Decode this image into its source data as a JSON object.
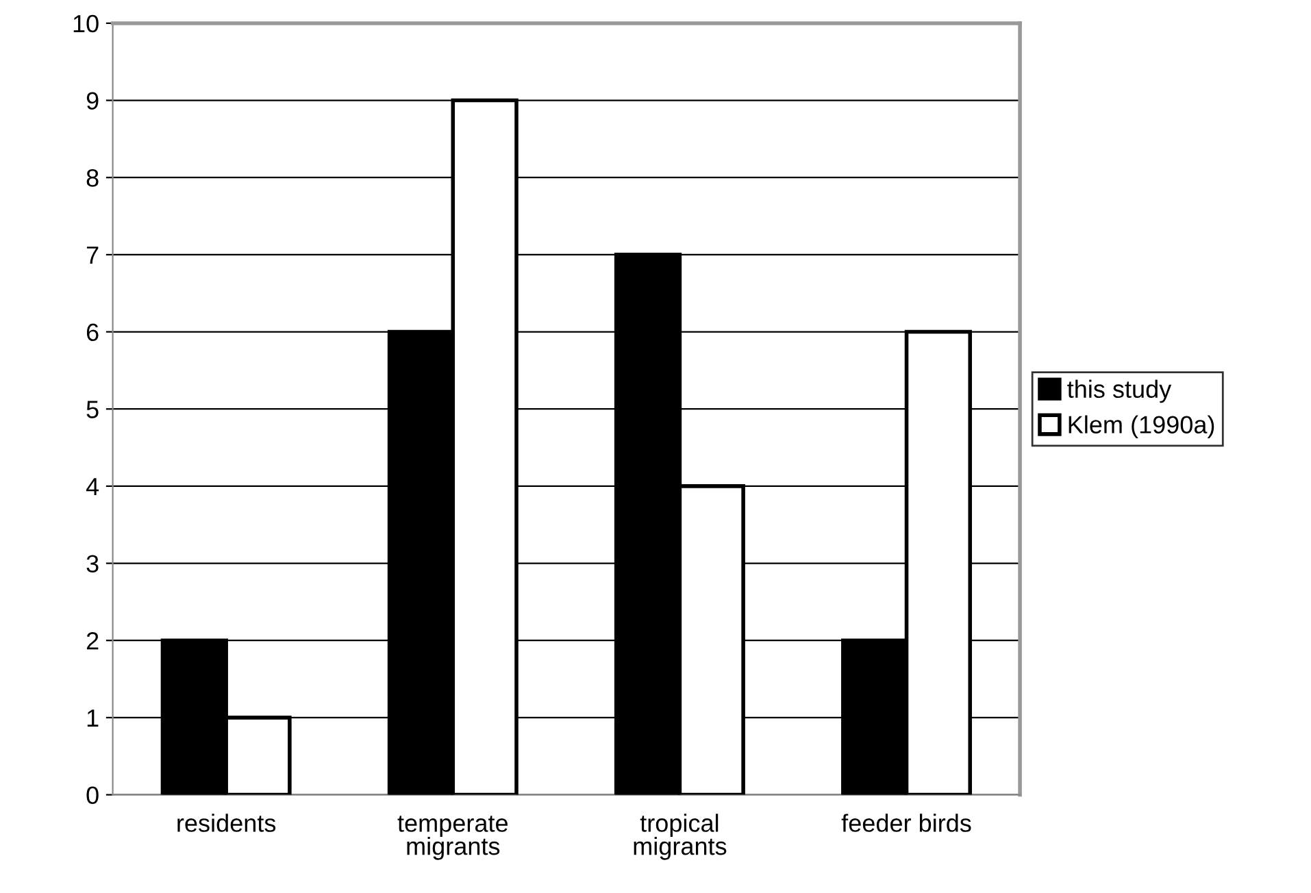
{
  "chart_data": {
    "type": "bar",
    "categories": [
      "residents",
      "temperate\nmigrants",
      "tropical\nmigrants",
      "feeder birds"
    ],
    "series": [
      {
        "name": "this study",
        "color": "#000000",
        "values": [
          2,
          6,
          7,
          2
        ]
      },
      {
        "name": "Klem (1990a)",
        "color": "#ffffff",
        "values": [
          1,
          9,
          4,
          6
        ]
      }
    ],
    "ylim": [
      0,
      10
    ],
    "yticks": [
      0,
      1,
      2,
      3,
      4,
      5,
      6,
      7,
      8,
      9,
      10
    ],
    "grid": "y",
    "legend": "right"
  }
}
